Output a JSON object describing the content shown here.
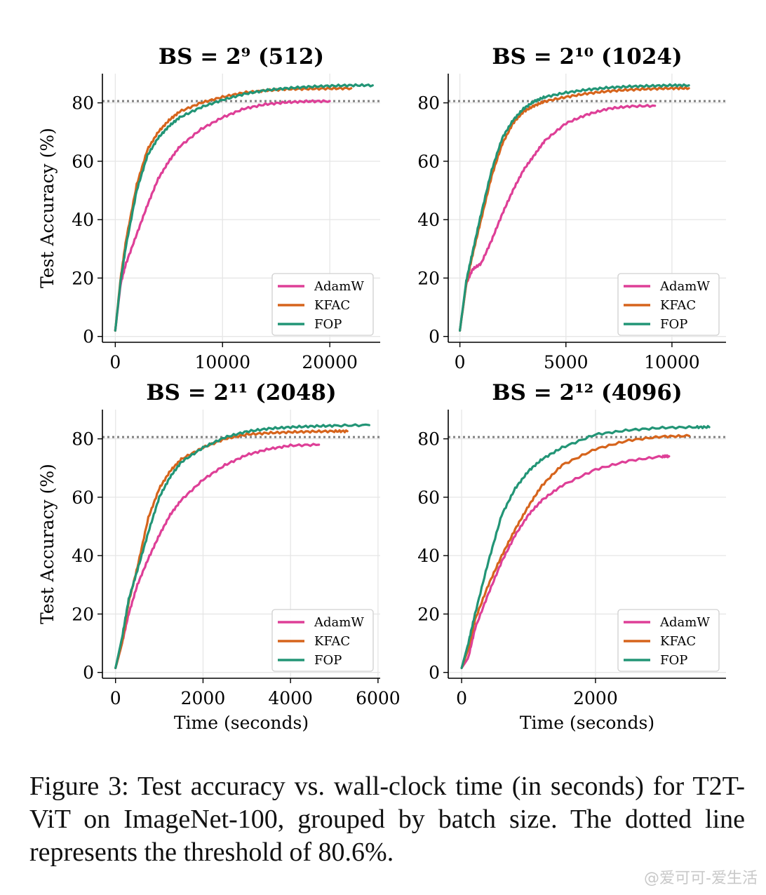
{
  "figure": {
    "caption": "Figure 3: Test accuracy vs. wall-clock time (in seconds) for T2T-ViT on ImageNet-100, grouped by batch size. The dotted line represents the threshold of 80.6%.",
    "watermark": "@爱可可-爱生活"
  },
  "colors": {
    "AdamW": "#de3f97",
    "KFAC": "#d6641c",
    "FOP": "#229576",
    "threshold": "#808080",
    "grid": "#e6e6e6"
  },
  "chart_data": [
    {
      "type": "line",
      "title": "BS = 2⁹ (512)",
      "xlabel": "",
      "ylabel": "Test Accuracy (%)",
      "xlim": [
        -1200,
        24700
      ],
      "ylim": [
        -2,
        90
      ],
      "xticks": [
        0,
        10000,
        20000
      ],
      "yticks": [
        0,
        20,
        40,
        60,
        80
      ],
      "threshold": 80.6,
      "legend": "lower-right",
      "series": [
        {
          "name": "AdamW",
          "x": [
            0,
            500,
            1000,
            2000,
            3000,
            4000,
            5000,
            6000,
            8000,
            10000,
            12000,
            14000,
            16000,
            18000,
            20000
          ],
          "y": [
            2,
            18,
            25,
            35,
            45,
            54,
            60,
            65,
            71,
            75,
            78,
            79.5,
            80.2,
            80.5,
            80.6
          ]
        },
        {
          "name": "KFAC",
          "x": [
            0,
            500,
            1000,
            2000,
            3000,
            4000,
            5000,
            6000,
            8000,
            10000,
            12000,
            14000,
            16000,
            18000,
            20000,
            22000
          ],
          "y": [
            2,
            20,
            33,
            52,
            64,
            70,
            74,
            77,
            80,
            82,
            83.5,
            84.2,
            84.7,
            84.8,
            84.9,
            85
          ]
        },
        {
          "name": "FOP",
          "x": [
            0,
            500,
            1000,
            2000,
            3000,
            4000,
            5000,
            6000,
            8000,
            10000,
            12000,
            14000,
            16000,
            18000,
            20000,
            22000,
            24000
          ],
          "y": [
            2,
            19,
            31,
            50,
            62,
            68,
            72,
            75,
            78.5,
            81,
            83,
            84.3,
            85,
            85.5,
            85.8,
            86,
            86
          ]
        }
      ]
    },
    {
      "type": "line",
      "title": "BS = 2¹⁰ (1024)",
      "xlabel": "",
      "ylabel": "",
      "xlim": [
        -550,
        12550
      ],
      "ylim": [
        -2,
        90
      ],
      "xticks": [
        0,
        5000,
        10000
      ],
      "yticks": [
        0,
        20,
        40,
        60,
        80
      ],
      "threshold": 80.6,
      "legend": "lower-right",
      "series": [
        {
          "name": "AdamW",
          "x": [
            0,
            300,
            600,
            1000,
            1500,
            2000,
            2500,
            3000,
            3500,
            4000,
            5000,
            6000,
            7000,
            8000,
            9200
          ],
          "y": [
            2,
            18,
            23,
            25,
            33,
            42,
            50,
            57,
            62,
            67,
            73,
            76,
            78,
            78.8,
            79
          ]
        },
        {
          "name": "KFAC",
          "x": [
            0,
            300,
            600,
            1000,
            1500,
            2000,
            2500,
            3000,
            3500,
            4000,
            5000,
            6000,
            7000,
            8000,
            9000,
            10000,
            10800
          ],
          "y": [
            2,
            18,
            28,
            40,
            55,
            66,
            73,
            77,
            79,
            80.5,
            82,
            83.2,
            84,
            84.5,
            84.8,
            85,
            85
          ]
        },
        {
          "name": "FOP",
          "x": [
            0,
            300,
            600,
            1000,
            1500,
            2000,
            2500,
            3000,
            3500,
            4000,
            5000,
            6000,
            7000,
            8000,
            9000,
            10000,
            10800
          ],
          "y": [
            2,
            19,
            29,
            42,
            57,
            68,
            74,
            78,
            80.5,
            82,
            83.5,
            84.5,
            85.2,
            85.6,
            85.8,
            86,
            86
          ]
        }
      ]
    },
    {
      "type": "line",
      "title": "BS = 2¹¹ (2048)",
      "xlabel": "Time (seconds)",
      "ylabel": "Test Accuracy (%)",
      "xlim": [
        -300,
        6050
      ],
      "ylim": [
        -2,
        90
      ],
      "xticks": [
        0,
        2000,
        4000,
        6000
      ],
      "yticks": [
        0,
        20,
        40,
        60,
        80
      ],
      "threshold": 80.6,
      "legend": "lower-right",
      "series": [
        {
          "name": "AdamW",
          "x": [
            0,
            150,
            300,
            500,
            750,
            1000,
            1250,
            1500,
            2000,
            2500,
            3000,
            3500,
            4000,
            4650
          ],
          "y": [
            1.5,
            10,
            20,
            30,
            39,
            47,
            54,
            59,
            66,
            71,
            74.5,
            76.5,
            77.7,
            78
          ]
        },
        {
          "name": "KFAC",
          "x": [
            0,
            150,
            300,
            500,
            750,
            1000,
            1250,
            1500,
            2000,
            2500,
            3000,
            3500,
            4000,
            4500,
            5000,
            5300
          ],
          "y": [
            1.5,
            10,
            24,
            36,
            53,
            63,
            69,
            73,
            77,
            80,
            81.5,
            82,
            82.3,
            82.5,
            82.6,
            82.6
          ]
        },
        {
          "name": "FOP",
          "x": [
            0,
            150,
            300,
            500,
            750,
            1000,
            1250,
            1500,
            2000,
            2500,
            3000,
            3500,
            4000,
            4500,
            5000,
            5800
          ],
          "y": [
            1.5,
            12,
            25,
            35,
            48,
            60,
            67,
            72,
            77,
            80.5,
            82.5,
            83.5,
            84,
            84.3,
            84.5,
            84.7
          ]
        }
      ]
    },
    {
      "type": "line",
      "title": "BS = 2¹² (4096)",
      "xlabel": "Time (seconds)",
      "ylabel": "",
      "xlim": [
        -200,
        3950
      ],
      "ylim": [
        -2,
        90
      ],
      "xticks": [
        0,
        2000
      ],
      "yticks": [
        0,
        20,
        40,
        60,
        80
      ],
      "threshold": 80.6,
      "legend": "lower-right",
      "series": [
        {
          "name": "AdamW",
          "x": [
            0,
            100,
            200,
            400,
            600,
            800,
            1000,
            1200,
            1500,
            2000,
            2500,
            3000,
            3100
          ],
          "y": [
            1.5,
            5,
            15,
            27,
            38,
            47,
            54,
            59,
            64,
            69.5,
            72.5,
            74,
            74
          ]
        },
        {
          "name": "KFAC",
          "x": [
            0,
            100,
            200,
            400,
            600,
            800,
            1000,
            1200,
            1500,
            2000,
            2500,
            3000,
            3400
          ],
          "y": [
            1.5,
            8,
            18,
            30,
            40,
            49,
            57,
            64,
            71,
            76.5,
            79.5,
            80.8,
            81
          ]
        },
        {
          "name": "FOP",
          "x": [
            0,
            100,
            200,
            400,
            600,
            800,
            1000,
            1200,
            1500,
            2000,
            2500,
            3000,
            3500,
            3700
          ],
          "y": [
            1.5,
            10,
            20,
            38,
            54,
            63,
            69,
            73,
            77,
            81.5,
            83,
            83.8,
            84,
            84
          ]
        }
      ]
    }
  ]
}
